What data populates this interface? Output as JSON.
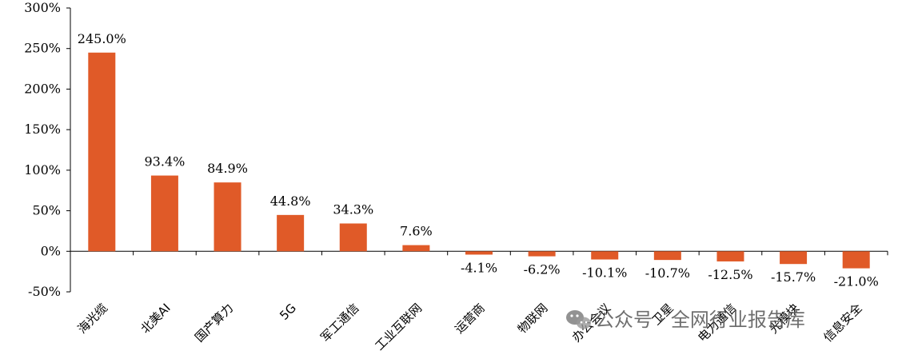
{
  "chart_data": {
    "type": "bar",
    "title": "",
    "xlabel": "",
    "ylabel": "",
    "ylim": [
      -50,
      300
    ],
    "yticks": [
      300,
      250,
      200,
      150,
      100,
      50,
      0,
      -50
    ],
    "ytick_suffix": "%",
    "grid": false,
    "bar_color": "#e05a28",
    "categories": [
      "海光缆",
      "北美AI",
      "国产算力",
      "5G",
      "军工通信",
      "工业互联网",
      "运营商",
      "物联网",
      "办公会议",
      "卫星",
      "电力通信",
      "光模块",
      "信息安全"
    ],
    "values": [
      245.0,
      93.4,
      84.9,
      44.8,
      34.3,
      7.6,
      -4.1,
      -6.2,
      -10.1,
      -10.7,
      -12.5,
      -15.7,
      -21.0
    ],
    "data_labels": [
      "245.0%",
      "93.4%",
      "84.9%",
      "44.8%",
      "34.3%",
      "7.6%",
      "-4.1%",
      "-6.2%",
      "-10.1%",
      "-10.7%",
      "-12.5%",
      "-15.7%",
      "-21.0%"
    ]
  },
  "watermark": {
    "text": "公众号 · 全网行业报告库",
    "icon": "wechat-icon"
  }
}
